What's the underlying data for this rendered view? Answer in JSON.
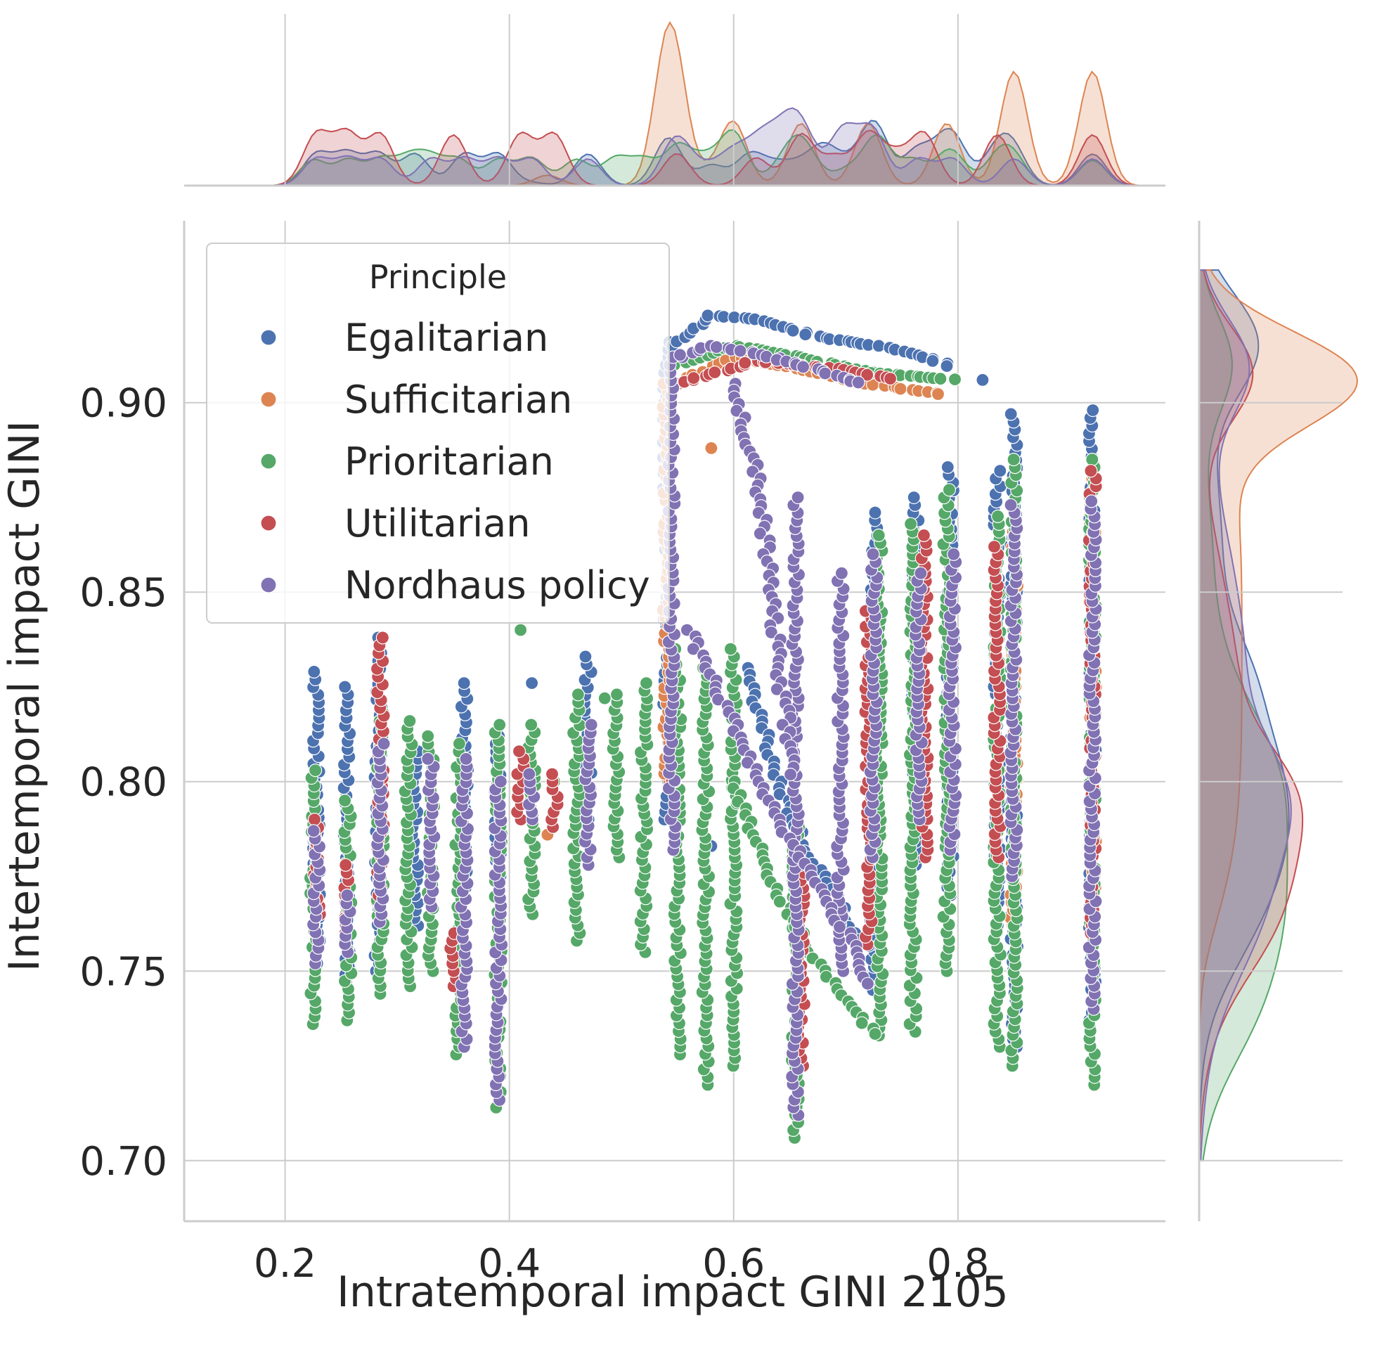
{
  "chart_data": {
    "type": "scatter",
    "xlabel": "Intratemporal impact GINI 2105",
    "ylabel": "Intertemporal impact GINI",
    "xlim": [
      0.11,
      0.985
    ],
    "ylim": [
      0.684,
      0.948
    ],
    "x_ticks": [
      0.2,
      0.4,
      0.6,
      0.8
    ],
    "x_tick_labels": [
      "0.2",
      "0.4",
      "0.6",
      "0.8"
    ],
    "y_ticks": [
      0.7,
      0.75,
      0.8,
      0.85,
      0.9
    ],
    "y_tick_labels": [
      "0.70",
      "0.75",
      "0.80",
      "0.85",
      "0.90"
    ],
    "grid": true,
    "legend": {
      "title": "Principle",
      "placement": "top-left",
      "entries": [
        "Egalitarian",
        "Sufficitarian",
        "Prioritarian",
        "Utilitarian",
        "Nordhaus policy"
      ]
    },
    "marginals": "kde on top (x) and right (y), one filled curve per principle",
    "series": [
      {
        "name": "Egalitarian",
        "color": "#4c72b0",
        "stripes": [
          {
            "x": 0.228,
            "y": [
              0.752,
              0.829
            ]
          },
          {
            "x": 0.255,
            "y": [
              0.745,
              0.825
            ]
          },
          {
            "x": 0.283,
            "y": [
              0.75,
              0.838
            ]
          },
          {
            "x": 0.316,
            "y": [
              0.762,
              0.808
            ]
          },
          {
            "x": 0.36,
            "y": [
              0.77,
              0.826
            ]
          },
          {
            "x": 0.39,
            "y": [
              0.775,
              0.812
            ]
          },
          {
            "x": 0.47,
            "y": [
              0.79,
              0.833
            ]
          },
          {
            "x": 0.54,
            "y": [
              0.79,
              0.916
            ]
          },
          {
            "x": 0.725,
            "y": [
              0.745,
              0.871
            ]
          },
          {
            "x": 0.762,
            "y": [
              0.778,
              0.875
            ]
          },
          {
            "x": 0.793,
            "y": [
              0.77,
              0.883
            ]
          },
          {
            "x": 0.835,
            "y": [
              0.76,
              0.882
            ]
          },
          {
            "x": 0.85,
            "y": [
              0.73,
              0.897
            ]
          },
          {
            "x": 0.92,
            "y": [
              0.735,
              0.898
            ]
          }
        ],
        "curves": [
          {
            "x": [
              0.545,
              0.58,
              0.62,
              0.68,
              0.73,
              0.78,
              0.8
            ],
            "y": [
              0.915,
              0.923,
              0.922,
              0.917,
              0.915,
              0.911,
              0.909
            ]
          },
          {
            "x": [
              0.61,
              0.64,
              0.66,
              0.68,
              0.7,
              0.72
            ],
            "y": [
              0.83,
              0.8,
              0.785,
              0.775,
              0.765,
              0.755
            ]
          }
        ],
        "points": [
          {
            "x": 0.822,
            "y": 0.906
          },
          {
            "x": 0.42,
            "y": 0.826
          },
          {
            "x": 0.58,
            "y": 0.783
          }
        ]
      },
      {
        "name": "Sufficitarian",
        "color": "#dd8452",
        "stripes": [
          {
            "x": 0.54,
            "y": [
              0.8,
              0.905
            ]
          },
          {
            "x": 0.85,
            "y": [
              0.762,
              0.87
            ]
          },
          {
            "x": 0.92,
            "y": [
              0.77,
              0.88
            ]
          }
        ],
        "curves": [
          {
            "x": [
              0.55,
              0.6,
              0.66,
              0.72,
              0.79
            ],
            "y": [
              0.905,
              0.912,
              0.909,
              0.905,
              0.902
            ]
          }
        ],
        "points": [
          {
            "x": 0.434,
            "y": 0.786
          },
          {
            "x": 0.58,
            "y": 0.888
          }
        ]
      },
      {
        "name": "Prioritarian",
        "color": "#55a868",
        "stripes": [
          {
            "x": 0.225,
            "y": [
              0.736,
              0.803
            ]
          },
          {
            "x": 0.256,
            "y": [
              0.737,
              0.795
            ]
          },
          {
            "x": 0.285,
            "y": [
              0.744,
              0.818
            ]
          },
          {
            "x": 0.31,
            "y": [
              0.746,
              0.816
            ]
          },
          {
            "x": 0.33,
            "y": [
              0.75,
              0.812
            ]
          },
          {
            "x": 0.355,
            "y": [
              0.728,
              0.81
            ]
          },
          {
            "x": 0.39,
            "y": [
              0.714,
              0.815
            ]
          },
          {
            "x": 0.42,
            "y": [
              0.765,
              0.815
            ]
          },
          {
            "x": 0.46,
            "y": [
              0.758,
              0.823
            ]
          },
          {
            "x": 0.495,
            "y": [
              0.78,
              0.823
            ]
          },
          {
            "x": 0.52,
            "y": [
              0.755,
              0.826
            ]
          },
          {
            "x": 0.55,
            "y": [
              0.728,
              0.835
            ]
          },
          {
            "x": 0.575,
            "y": [
              0.72,
              0.83
            ]
          },
          {
            "x": 0.6,
            "y": [
              0.725,
              0.835
            ]
          },
          {
            "x": 0.655,
            "y": [
              0.706,
              0.788
            ]
          },
          {
            "x": 0.73,
            "y": [
              0.733,
              0.865
            ]
          },
          {
            "x": 0.76,
            "y": [
              0.734,
              0.868
            ]
          },
          {
            "x": 0.79,
            "y": [
              0.75,
              0.877
            ]
          },
          {
            "x": 0.835,
            "y": [
              0.73,
              0.87
            ]
          },
          {
            "x": 0.85,
            "y": [
              0.725,
              0.885
            ]
          },
          {
            "x": 0.92,
            "y": [
              0.72,
              0.885
            ]
          }
        ],
        "curves": [
          {
            "x": [
              0.55,
              0.6,
              0.66,
              0.72,
              0.8
            ],
            "y": [
              0.91,
              0.915,
              0.912,
              0.908,
              0.906
            ]
          },
          {
            "x": [
              0.6,
              0.64,
              0.67,
              0.7,
              0.73
            ],
            "y": [
              0.8,
              0.77,
              0.755,
              0.742,
              0.732
            ]
          }
        ],
        "points": [
          {
            "x": 0.41,
            "y": 0.84
          },
          {
            "x": 0.485,
            "y": 0.822
          },
          {
            "x": 0.44,
            "y": 0.8
          }
        ]
      },
      {
        "name": "Utilitarian",
        "color": "#c44e52",
        "stripes": [
          {
            "x": 0.228,
            "y": [
              0.765,
              0.79
            ]
          },
          {
            "x": 0.255,
            "y": [
              0.76,
              0.778
            ]
          },
          {
            "x": 0.285,
            "y": [
              0.77,
              0.838
            ]
          },
          {
            "x": 0.35,
            "y": [
              0.746,
              0.76
            ]
          },
          {
            "x": 0.41,
            "y": [
              0.79,
              0.808
            ]
          },
          {
            "x": 0.44,
            "y": [
              0.788,
              0.802
            ]
          },
          {
            "x": 0.66,
            "y": [
              0.725,
              0.78
            ]
          },
          {
            "x": 0.72,
            "y": [
              0.757,
              0.845
            ]
          },
          {
            "x": 0.77,
            "y": [
              0.78,
              0.865
            ]
          },
          {
            "x": 0.835,
            "y": [
              0.78,
              0.862
            ]
          },
          {
            "x": 0.92,
            "y": [
              0.76,
              0.882
            ]
          }
        ],
        "curves": [
          {
            "x": [
              0.55,
              0.62,
              0.69,
              0.745
            ],
            "y": [
              0.905,
              0.911,
              0.909,
              0.906
            ]
          }
        ],
        "points": [
          {
            "x": 0.545,
            "y": 0.8
          }
        ]
      },
      {
        "name": "Nordhaus policy",
        "color": "#8172b3",
        "stripes": [
          {
            "x": 0.228,
            "y": [
              0.752,
              0.787
            ]
          },
          {
            "x": 0.256,
            "y": [
              0.755,
              0.77
            ]
          },
          {
            "x": 0.285,
            "y": [
              0.763,
              0.81
            ]
          },
          {
            "x": 0.33,
            "y": [
              0.767,
              0.806
            ]
          },
          {
            "x": 0.36,
            "y": [
              0.73,
              0.806
            ]
          },
          {
            "x": 0.39,
            "y": [
              0.716,
              0.8
            ]
          },
          {
            "x": 0.42,
            "y": [
              0.79,
              0.802
            ]
          },
          {
            "x": 0.47,
            "y": [
              0.778,
              0.815
            ]
          },
          {
            "x": 0.545,
            "y": [
              0.782,
              0.912
            ]
          },
          {
            "x": 0.655,
            "y": [
              0.712,
              0.875
            ]
          },
          {
            "x": 0.695,
            "y": [
              0.75,
              0.855
            ]
          },
          {
            "x": 0.725,
            "y": [
              0.78,
              0.86
            ]
          },
          {
            "x": 0.765,
            "y": [
              0.79,
              0.855
            ]
          },
          {
            "x": 0.795,
            "y": [
              0.782,
              0.86
            ]
          },
          {
            "x": 0.85,
            "y": [
              0.775,
              0.873
            ]
          },
          {
            "x": 0.92,
            "y": [
              0.74,
              0.874
            ]
          }
        ],
        "curves": [
          {
            "x": [
              0.55,
              0.58,
              0.62,
              0.66,
              0.7,
              0.72
            ],
            "y": [
              0.912,
              0.915,
              0.913,
              0.91,
              0.906,
              0.905
            ]
          },
          {
            "x": [
              0.56,
              0.6,
              0.64,
              0.67,
              0.7,
              0.725
            ],
            "y": [
              0.84,
              0.815,
              0.79,
              0.775,
              0.76,
              0.745
            ]
          },
          {
            "x": [
              0.6,
              0.62,
              0.63,
              0.64,
              0.655
            ],
            "y": [
              0.905,
              0.88,
              0.86,
              0.83,
              0.8
            ]
          }
        ],
        "points": []
      }
    ]
  }
}
